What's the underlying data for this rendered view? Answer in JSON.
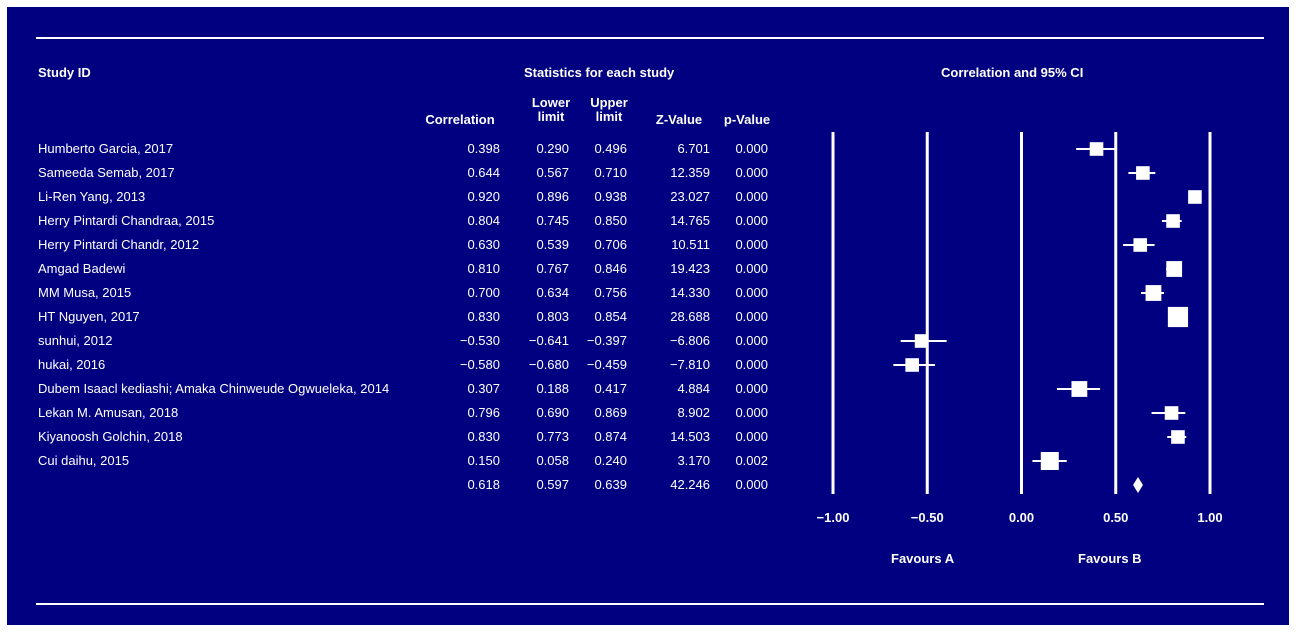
{
  "colors": {
    "background": "#000080",
    "foreground": "#ffffff"
  },
  "header": {
    "study_id": "Study ID",
    "stats_group": "Statistics for each study",
    "plot_title": "Correlation and 95% CI",
    "columns": [
      "Correlation",
      "Lower limit",
      "Upper limit",
      "Z-Value",
      "p-Value"
    ]
  },
  "rows": [
    {
      "study": "Humberto Garcia, 2017",
      "correlation": "0.398",
      "lower": "0.290",
      "upper": "0.496",
      "z": "6.701",
      "p": "0.000"
    },
    {
      "study": "Sameeda Semab, 2017",
      "correlation": "0.644",
      "lower": "0.567",
      "upper": "0.710",
      "z": "12.359",
      "p": "0.000"
    },
    {
      "study": "Li-Ren Yang, 2013",
      "correlation": "0.920",
      "lower": "0.896",
      "upper": "0.938",
      "z": "23.027",
      "p": "0.000"
    },
    {
      "study": "Herry Pintardi Chandraa, 2015",
      "correlation": "0.804",
      "lower": "0.745",
      "upper": "0.850",
      "z": "14.765",
      "p": "0.000"
    },
    {
      "study": "Herry Pintardi Chandr, 2012",
      "correlation": "0.630",
      "lower": "0.539",
      "upper": "0.706",
      "z": "10.511",
      "p": "0.000"
    },
    {
      "study": "Amgad Badewi",
      "correlation": "0.810",
      "lower": "0.767",
      "upper": "0.846",
      "z": "19.423",
      "p": "0.000"
    },
    {
      "study": "MM Musa, 2015",
      "correlation": "0.700",
      "lower": "0.634",
      "upper": "0.756",
      "z": "14.330",
      "p": "0.000"
    },
    {
      "study": "HT Nguyen, 2017",
      "correlation": "0.830",
      "lower": "0.803",
      "upper": "0.854",
      "z": "28.688",
      "p": "0.000"
    },
    {
      "study": "sunhui, 2012",
      "correlation": "−0.530",
      "lower": "−0.641",
      "upper": "−0.397",
      "z": "−6.806",
      "p": "0.000"
    },
    {
      "study": "hukai, 2016",
      "correlation": "−0.580",
      "lower": "−0.680",
      "upper": "−0.459",
      "z": "−7.810",
      "p": "0.000"
    },
    {
      "study": "Dubem Isaacl kediashi; Amaka Chinweude Ogwueleka, 2014",
      "correlation": "0.307",
      "lower": "0.188",
      "upper": "0.417",
      "z": "4.884",
      "p": "0.000"
    },
    {
      "study": "Lekan M. Amusan, 2018",
      "correlation": "0.796",
      "lower": "0.690",
      "upper": "0.869",
      "z": "8.902",
      "p": "0.000"
    },
    {
      "study": "Kiyanoosh Golchin, 2018",
      "correlation": "0.830",
      "lower": "0.773",
      "upper": "0.874",
      "z": "14.503",
      "p": "0.000"
    },
    {
      "study": "Cui daihu, 2015",
      "correlation": "0.150",
      "lower": "0.058",
      "upper": "0.240",
      "z": "3.170",
      "p": "0.002"
    }
  ],
  "summary": {
    "study": "",
    "correlation": "0.618",
    "lower": "0.597",
    "upper": "0.639",
    "z": "42.246",
    "p": "0.000"
  },
  "chart_data": {
    "type": "forest",
    "title": "Correlation and 95% CI",
    "xlim": [
      -1.0,
      1.0
    ],
    "x_ticks": [
      "−1.00",
      "−0.50",
      "0.00",
      "0.50",
      "1.00"
    ],
    "x_tick_values": [
      -1.0,
      -0.5,
      0.0,
      0.5,
      1.0
    ],
    "favours_left": "Favours A",
    "favours_right": "Favours B",
    "points": [
      {
        "study": "Humberto Garcia, 2017",
        "r": 0.398,
        "lo": 0.29,
        "hi": 0.496,
        "weight": 3
      },
      {
        "study": "Sameeda Semab, 2017",
        "r": 0.644,
        "lo": 0.567,
        "hi": 0.71,
        "weight": 3
      },
      {
        "study": "Li-Ren Yang, 2013",
        "r": 0.92,
        "lo": 0.896,
        "hi": 0.938,
        "weight": 3
      },
      {
        "study": "Herry Pintardi Chandraa, 2015",
        "r": 0.804,
        "lo": 0.745,
        "hi": 0.85,
        "weight": 3
      },
      {
        "study": "Herry Pintardi Chandr, 2012",
        "r": 0.63,
        "lo": 0.539,
        "hi": 0.706,
        "weight": 3
      },
      {
        "study": "Amgad Badewi",
        "r": 0.81,
        "lo": 0.767,
        "hi": 0.846,
        "weight": 4
      },
      {
        "study": "MM Musa, 2015",
        "r": 0.7,
        "lo": 0.634,
        "hi": 0.756,
        "weight": 4
      },
      {
        "study": "HT Nguyen, 2017",
        "r": 0.83,
        "lo": 0.803,
        "hi": 0.854,
        "weight": 6
      },
      {
        "study": "sunhui, 2012",
        "r": -0.53,
        "lo": -0.641,
        "hi": -0.397,
        "weight": 3
      },
      {
        "study": "hukai, 2016",
        "r": -0.58,
        "lo": -0.68,
        "hi": -0.459,
        "weight": 3
      },
      {
        "study": "Dubem Isaacl kediashi; Amaka Chinweude Ogwueleka, 2014",
        "r": 0.307,
        "lo": 0.188,
        "hi": 0.417,
        "weight": 4
      },
      {
        "study": "Lekan M. Amusan, 2018",
        "r": 0.796,
        "lo": 0.69,
        "hi": 0.869,
        "weight": 3
      },
      {
        "study": "Kiyanoosh Golchin, 2018",
        "r": 0.83,
        "lo": 0.773,
        "hi": 0.874,
        "weight": 3
      },
      {
        "study": "Cui daihu, 2015",
        "r": 0.15,
        "lo": 0.058,
        "hi": 0.24,
        "weight": 5
      }
    ],
    "summary": {
      "r": 0.618,
      "lo": 0.597,
      "hi": 0.639
    }
  }
}
